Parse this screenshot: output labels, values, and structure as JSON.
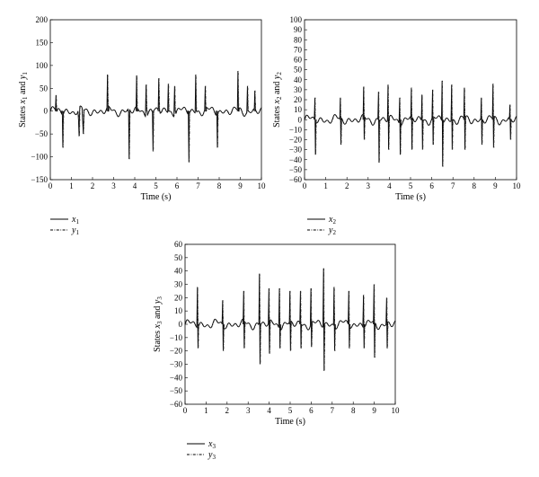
{
  "chart_data": [
    {
      "type": "line",
      "ylabel_pre": "States ",
      "ylabel_v1": "x",
      "ylabel_s1": "1",
      "ylabel_mid": " and ",
      "ylabel_v2": "y",
      "ylabel_s2": "1",
      "xlabel": "Time (s)",
      "xlim": [
        0,
        10
      ],
      "ylim": [
        -150,
        200
      ],
      "xticks": [
        "0",
        "1",
        "2",
        "3",
        "4",
        "5",
        "6",
        "7",
        "8",
        "9",
        "10"
      ],
      "yticks": [
        "−150",
        "−100",
        "−50",
        "0",
        "50",
        "100",
        "150",
        "200"
      ],
      "legend": [
        {
          "var": "x",
          "sub": "1",
          "style": "solid"
        },
        {
          "var": "y",
          "sub": "1",
          "style": "dashdot"
        }
      ],
      "spikes": [
        {
          "t": 0.28,
          "lo": 0,
          "hi": 35
        },
        {
          "t": 0.58,
          "lo": -80,
          "hi": 0
        },
        {
          "t": 1.35,
          "lo": -55,
          "hi": -20
        },
        {
          "t": 1.55,
          "lo": -50,
          "hi": -25
        },
        {
          "t": 2.72,
          "lo": 0,
          "hi": 80
        },
        {
          "t": 3.72,
          "lo": -105,
          "hi": 0
        },
        {
          "t": 4.1,
          "lo": 0,
          "hi": 78
        },
        {
          "t": 4.55,
          "lo": 0,
          "hi": 58
        },
        {
          "t": 4.85,
          "lo": -88,
          "hi": 0
        },
        {
          "t": 5.15,
          "lo": 0,
          "hi": 72
        },
        {
          "t": 5.6,
          "lo": 0,
          "hi": 60
        },
        {
          "t": 5.9,
          "lo": 0,
          "hi": 55
        },
        {
          "t": 6.55,
          "lo": -112,
          "hi": 0
        },
        {
          "t": 6.9,
          "lo": 0,
          "hi": 80
        },
        {
          "t": 7.35,
          "lo": 0,
          "hi": 55
        },
        {
          "t": 7.9,
          "lo": -80,
          "hi": 0
        },
        {
          "t": 8.9,
          "lo": 0,
          "hi": 88
        },
        {
          "t": 9.35,
          "lo": 0,
          "hi": 55
        },
        {
          "t": 9.7,
          "lo": 0,
          "hi": 45
        }
      ]
    },
    {
      "type": "line",
      "ylabel_pre": "States ",
      "ylabel_v1": "x",
      "ylabel_s1": "2",
      "ylabel_mid": " and ",
      "ylabel_v2": "y",
      "ylabel_s2": "2",
      "xlabel": "Time (s)",
      "xlim": [
        0,
        10
      ],
      "ylim": [
        -60,
        100
      ],
      "xticks": [
        "0",
        "1",
        "2",
        "3",
        "4",
        "5",
        "6",
        "7",
        "8",
        "9",
        "10"
      ],
      "yticks": [
        "−60",
        "−50",
        "−40",
        "−30",
        "−20",
        "−10",
        "0",
        "10",
        "20",
        "30",
        "40",
        "50",
        "60",
        "70",
        "80",
        "90",
        "100"
      ],
      "legend": [
        {
          "var": "x",
          "sub": "2",
          "style": "solid"
        },
        {
          "var": "y",
          "sub": "2",
          "style": "dashdot"
        }
      ],
      "spikes": [
        {
          "t": 0.5,
          "lo": -35,
          "hi": 22
        },
        {
          "t": 1.7,
          "lo": -25,
          "hi": 22
        },
        {
          "t": 2.8,
          "lo": -20,
          "hi": 33
        },
        {
          "t": 3.5,
          "lo": -43,
          "hi": 28
        },
        {
          "t": 3.95,
          "lo": -30,
          "hi": 35
        },
        {
          "t": 4.5,
          "lo": -35,
          "hi": 22
        },
        {
          "t": 5.05,
          "lo": -30,
          "hi": 32
        },
        {
          "t": 5.55,
          "lo": -30,
          "hi": 25
        },
        {
          "t": 6.05,
          "lo": -25,
          "hi": 30
        },
        {
          "t": 6.5,
          "lo": -47,
          "hi": 39
        },
        {
          "t": 6.95,
          "lo": -30,
          "hi": 35
        },
        {
          "t": 7.55,
          "lo": -30,
          "hi": 32
        },
        {
          "t": 8.35,
          "lo": -25,
          "hi": 22
        },
        {
          "t": 8.9,
          "lo": -28,
          "hi": 36
        },
        {
          "t": 9.7,
          "lo": -20,
          "hi": 15
        }
      ]
    },
    {
      "type": "line",
      "ylabel_pre": "States ",
      "ylabel_v1": "x",
      "ylabel_s1": "3",
      "ylabel_mid": " and ",
      "ylabel_v2": "y",
      "ylabel_s2": "3",
      "xlabel": "Time (s)",
      "xlim": [
        0,
        10
      ],
      "ylim": [
        -60,
        60
      ],
      "xticks": [
        "0",
        "1",
        "2",
        "3",
        "4",
        "5",
        "6",
        "7",
        "8",
        "9",
        "10"
      ],
      "yticks": [
        "−60",
        "−50",
        "−40",
        "−30",
        "−20",
        "−10",
        "0",
        "10",
        "20",
        "30",
        "40",
        "50",
        "60"
      ],
      "legend": [
        {
          "var": "x",
          "sub": "3",
          "style": "solid"
        },
        {
          "var": "y",
          "sub": "3",
          "style": "dashdot"
        }
      ],
      "spikes": [
        {
          "t": 0.6,
          "lo": -18,
          "hi": 28
        },
        {
          "t": 1.8,
          "lo": -20,
          "hi": 18
        },
        {
          "t": 2.8,
          "lo": -18,
          "hi": 25
        },
        {
          "t": 3.55,
          "lo": -30,
          "hi": 38
        },
        {
          "t": 4.0,
          "lo": -22,
          "hi": 27
        },
        {
          "t": 4.5,
          "lo": -18,
          "hi": 27
        },
        {
          "t": 5.0,
          "lo": -20,
          "hi": 25
        },
        {
          "t": 5.5,
          "lo": -18,
          "hi": 25
        },
        {
          "t": 6.0,
          "lo": -17,
          "hi": 27
        },
        {
          "t": 6.6,
          "lo": -35,
          "hi": 42
        },
        {
          "t": 7.1,
          "lo": -20,
          "hi": 28
        },
        {
          "t": 7.8,
          "lo": -18,
          "hi": 25
        },
        {
          "t": 8.5,
          "lo": -18,
          "hi": 22
        },
        {
          "t": 9.0,
          "lo": -25,
          "hi": 30
        },
        {
          "t": 9.6,
          "lo": -18,
          "hi": 20
        }
      ]
    }
  ]
}
